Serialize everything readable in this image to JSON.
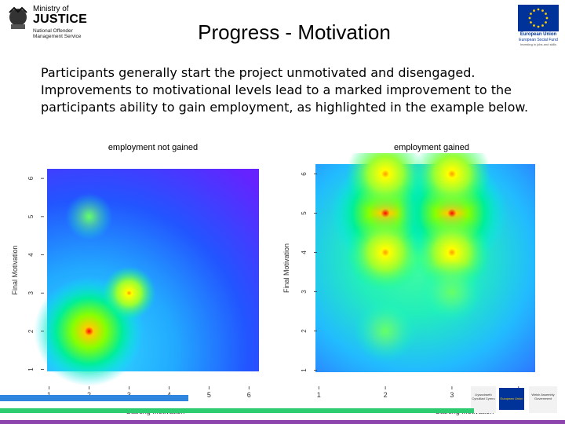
{
  "header": {
    "logo_left": {
      "line1": "Ministry of",
      "line2": "JUSTICE",
      "line3": "National Offender Management Service"
    },
    "logo_right": {
      "line1": "European Union",
      "line2": "European Social Fund",
      "line3": "Investing in jobs and skills"
    },
    "title": "Progress -  Motivation"
  },
  "body": {
    "text": "Participants generally start the project unmotivated and disengaged. Improvements to motivational levels lead to a marked improvement to the participants ability to gain employment, as highlighted in the example below."
  },
  "chart_data": [
    {
      "type": "heatmap",
      "title": "employment not gained",
      "xlabel": "Starting Motivation",
      "ylabel": "Final Motivation",
      "xticks": [
        1,
        2,
        3,
        4,
        5,
        6
      ],
      "yticks": [
        1,
        2,
        3,
        4,
        5,
        6
      ],
      "xlim": [
        0.95,
        6.25
      ],
      "ylim": [
        0.95,
        6.25
      ],
      "points": [
        {
          "x": 2,
          "y": 2,
          "level": "high"
        },
        {
          "x": 3,
          "y": 3,
          "level": "medium"
        },
        {
          "x": 2,
          "y": 5,
          "level": "low"
        }
      ]
    },
    {
      "type": "heatmap",
      "title": "employment gained",
      "xlabel": "Starting Motivation",
      "ylabel": "Final Motivation",
      "xticks": [
        1,
        2,
        3,
        4
      ],
      "yticks": [
        1,
        2,
        3,
        4,
        5,
        6
      ],
      "xlim": [
        0.95,
        4.25
      ],
      "ylim": [
        0.95,
        6.25
      ],
      "points": [
        {
          "x": 2,
          "y": 5,
          "level": "high"
        },
        {
          "x": 3,
          "y": 5,
          "level": "high"
        },
        {
          "x": 2,
          "y": 6,
          "level": "medium"
        },
        {
          "x": 3,
          "y": 6,
          "level": "medium"
        },
        {
          "x": 2,
          "y": 4,
          "level": "medium"
        },
        {
          "x": 3,
          "y": 4,
          "level": "medium"
        },
        {
          "x": 3,
          "y": 3,
          "level": "low"
        },
        {
          "x": 2,
          "y": 2,
          "level": "low"
        }
      ]
    }
  ],
  "footer": {
    "logos": [
      {
        "text": "Llywodraeth Cynulliad Cymru"
      },
      {
        "text": "European Union"
      },
      {
        "text": "Welsh Assembly Government"
      }
    ],
    "colors": {
      "blue_bar": "#2e86de",
      "green_bar": "#2ecc71",
      "purple_bar": "#8e44ad"
    }
  }
}
